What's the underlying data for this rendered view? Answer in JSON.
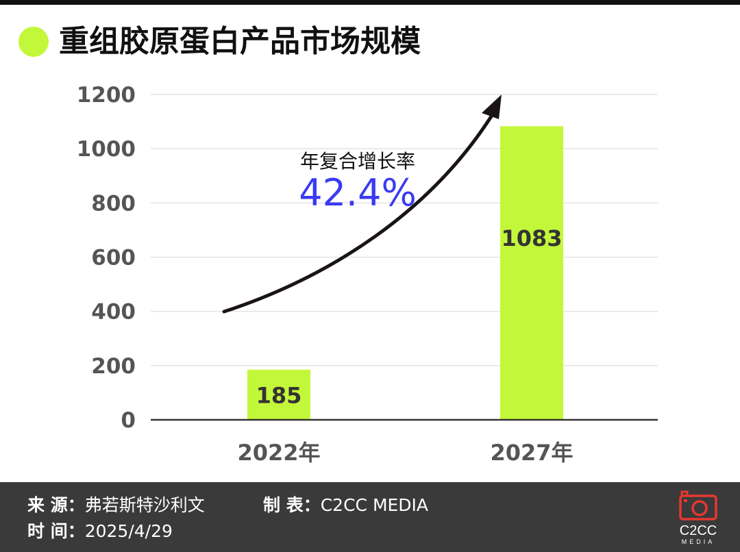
{
  "header": {
    "title": "重组胶原蛋白产品市场规模",
    "accent_color": "#c3f73a"
  },
  "chart_data": {
    "type": "bar",
    "title": "重组胶原蛋白产品市场规模",
    "categories": [
      "2022年",
      "2027年"
    ],
    "values": [
      185,
      1083
    ],
    "data_labels": [
      "185",
      "1083"
    ],
    "ylim": [
      0,
      1200
    ],
    "yticks": [
      0,
      200,
      400,
      600,
      800,
      1000,
      1200
    ],
    "xlabel": "",
    "ylabel": "",
    "grid": true,
    "bar_color": "#c3f73a",
    "annotation": {
      "label": "年复合增长率",
      "value": "42.4%",
      "value_color": "#3a3af2",
      "arrow": "curved upward arrow"
    }
  },
  "footer": {
    "source_label": "来 源：",
    "source_value": "弗若斯特沙利文",
    "maker_label": "制 表：",
    "maker_value": "C2CC  MEDIA",
    "time_label": "时 间：",
    "time_value": "2025/4/29",
    "logo_text": "C2CC",
    "logo_sub": "MEDIA",
    "logo_icon": "camera-icon",
    "logo_color": "#e6382f"
  }
}
